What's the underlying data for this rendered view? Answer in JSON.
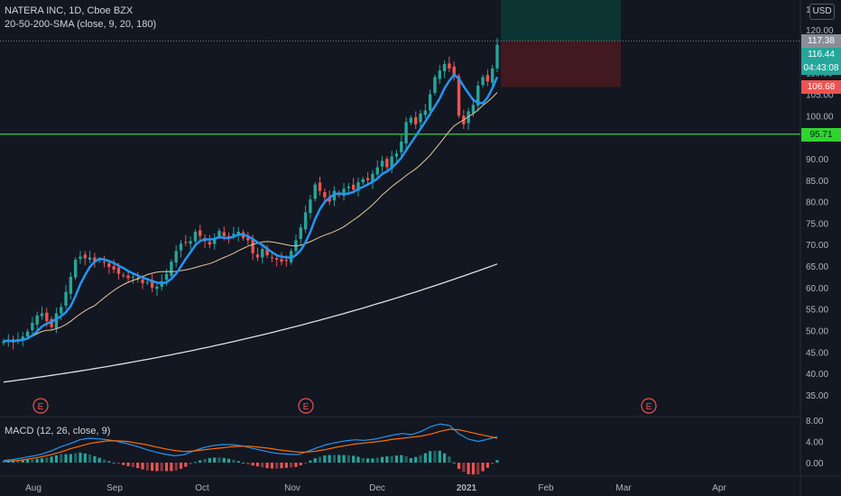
{
  "header": {
    "symbol_line": "NATERA INC, 1D, Cboe BZX",
    "indicator_line": "20-50-200-SMA (close, 9, 20, 180)"
  },
  "currency_button": "USD",
  "price_axis": {
    "ticks": [
      "120.00",
      "115.00",
      "110.00",
      "105.00",
      "100.00",
      "95.00",
      "90.00",
      "85.00",
      "80.00",
      "75.00",
      "70.00",
      "65.00",
      "60.00",
      "55.00",
      "50.00",
      "45.00",
      "40.00",
      "35.00"
    ]
  },
  "price_tags": {
    "last_close_gray": "117.38",
    "last_price": "116.44",
    "countdown": "04:43:08",
    "stop_level": "106.68",
    "support_level": "95.71"
  },
  "macd": {
    "label": "MACD (12, 26, close, 9)",
    "ticks": [
      "8.00",
      "4.00",
      "0.00"
    ]
  },
  "time_axis": {
    "labels": [
      "Aug",
      "Sep",
      "Oct",
      "Nov",
      "Dec",
      "2021",
      "Feb",
      "Mar",
      "Apr"
    ]
  },
  "earnings_marker": "E",
  "colors": {
    "background": "#131722",
    "up_candle": "#26a69a",
    "down_candle": "#ef5350",
    "sma9": "#2196f3",
    "sma20": "#e5c998",
    "sma180": "#e0e0e0",
    "support_line": "#2fd42f",
    "macd_line": "#2196f3",
    "signal_line": "#ff6d00"
  },
  "chart_data": {
    "type": "candlestick",
    "ticker": "NATERA INC",
    "interval": "1D",
    "y_range": [
      34,
      122
    ],
    "support": 95.71,
    "stop": 106.68,
    "last": 116.44,
    "target": 117.38,
    "closes": [
      47.5,
      47.8,
      47.2,
      48.0,
      48.6,
      49.8,
      51.8,
      53.5,
      54.0,
      52.2,
      50.8,
      54.0,
      55.5,
      59.0,
      62.5,
      66.5,
      67.2,
      66.8,
      67.0,
      66.0,
      66.5,
      65.8,
      64.8,
      64.2,
      63.2,
      62.8,
      62.2,
      62.5,
      62.0,
      61.0,
      61.3,
      60.0,
      60.2,
      61.5,
      63.2,
      66.0,
      68.5,
      70.2,
      70.5,
      70.8,
      73.0,
      72.0,
      70.8,
      70.0,
      71.5,
      73.2,
      72.0,
      71.8,
      72.5,
      73.0,
      71.5,
      71.0,
      68.0,
      67.0,
      69.0,
      67.5,
      67.0,
      66.5,
      66.0,
      66.2,
      68.5,
      71.0,
      74.0,
      77.5,
      80.5,
      84.0,
      82.5,
      81.0,
      80.0,
      82.5,
      81.5,
      83.0,
      83.5,
      82.8,
      84.5,
      85.2,
      85.0,
      86.5,
      88.0,
      89.5,
      88.0,
      90.5,
      91.2,
      94.0,
      98.5,
      99.5,
      98.0,
      100.5,
      101.2,
      105.0,
      109.0,
      110.5,
      112.0,
      111.0,
      109.5,
      100.0,
      98.0,
      101.0,
      102.5,
      107.0,
      109.0,
      108.0,
      111.0,
      116.5
    ],
    "series": [
      {
        "name": "MACD",
        "values": [
          0.4,
          0.6,
          0.9,
          1.2,
          1.6,
          2.2,
          3.0,
          3.6,
          4.3,
          4.6,
          4.5,
          4.3,
          4.0,
          3.6,
          3.1,
          2.5,
          2.0,
          1.6,
          1.3,
          1.5,
          2.2,
          2.8,
          3.2,
          3.4,
          3.4,
          3.2,
          2.8,
          2.4,
          2.0,
          1.7,
          1.6,
          1.5,
          2.1,
          2.8,
          3.4,
          3.8,
          4.1,
          4.3,
          4.2,
          4.4,
          4.8,
          5.2,
          5.5,
          5.3,
          5.9,
          6.8,
          7.3,
          7.0,
          5.4,
          4.4,
          4.0,
          4.4,
          4.9
        ]
      },
      {
        "name": "Signal",
        "values": [
          0.2,
          0.3,
          0.5,
          0.8,
          1.1,
          1.5,
          2.0,
          2.6,
          3.1,
          3.6,
          3.9,
          4.1,
          4.1,
          4.0,
          3.7,
          3.4,
          3.0,
          2.6,
          2.3,
          2.1,
          2.2,
          2.4,
          2.6,
          2.8,
          3.0,
          3.1,
          3.1,
          2.9,
          2.7,
          2.4,
          2.2,
          2.0,
          2.0,
          2.2,
          2.5,
          2.9,
          3.2,
          3.5,
          3.7,
          3.9,
          4.1,
          4.4,
          4.6,
          4.8,
          5.0,
          5.4,
          5.9,
          6.3,
          6.2,
          5.8,
          5.4,
          5.0,
          4.6
        ]
      }
    ]
  }
}
